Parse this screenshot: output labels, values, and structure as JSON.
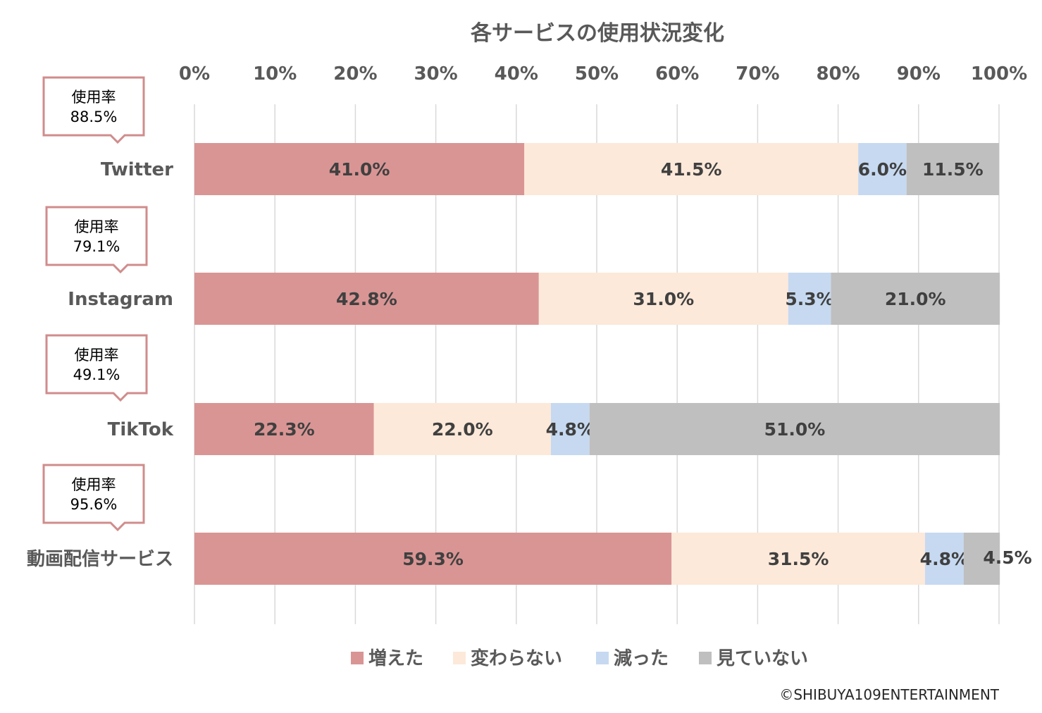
{
  "chart_data": {
    "type": "bar",
    "orientation": "horizontal",
    "stacked": true,
    "title": "各サービスの使用状況変化",
    "x_ticks": [
      "0%",
      "10%",
      "20%",
      "30%",
      "40%",
      "50%",
      "60%",
      "70%",
      "80%",
      "90%",
      "100%"
    ],
    "xlim": [
      0,
      100
    ],
    "grid": true,
    "legend_position": "bottom",
    "categories": [
      "Twitter",
      "Instagram",
      "TikTok",
      "動画配信サービス"
    ],
    "series": [
      {
        "name": "増えた",
        "color": "#D99594",
        "values": [
          41.0,
          42.8,
          22.3,
          59.3
        ],
        "labels": [
          "41.0%",
          "42.8%",
          "22.3%",
          "59.3%"
        ]
      },
      {
        "name": "変わらない",
        "color": "#FDE9D9",
        "values": [
          41.5,
          31.0,
          22.0,
          31.5
        ],
        "labels": [
          "41.5%",
          "31.0%",
          "22.0%",
          "31.5%"
        ]
      },
      {
        "name": "減った",
        "color": "#C6D9F1",
        "values": [
          6.0,
          5.3,
          4.8,
          4.8
        ],
        "labels": [
          "6.0%",
          "5.3%",
          "4.8%",
          "4.8%"
        ]
      },
      {
        "name": "見ていない",
        "color": "#BFBFBF",
        "values": [
          11.5,
          21.0,
          51.0,
          4.5
        ],
        "labels": [
          "11.5%",
          "21.0%",
          "51.0%",
          "4.5%"
        ]
      }
    ],
    "callouts": [
      {
        "label": "使用率",
        "value": "88.5%"
      },
      {
        "label": "使用率",
        "value": "79.1%"
      },
      {
        "label": "使用率",
        "value": "49.1%"
      },
      {
        "label": "使用率",
        "value": "95.6%"
      }
    ],
    "callout_border_color": "#D08C8C",
    "grid_color": "#D9D9D9"
  },
  "credit": "©SHIBUYA109ENTERTAINMENT"
}
